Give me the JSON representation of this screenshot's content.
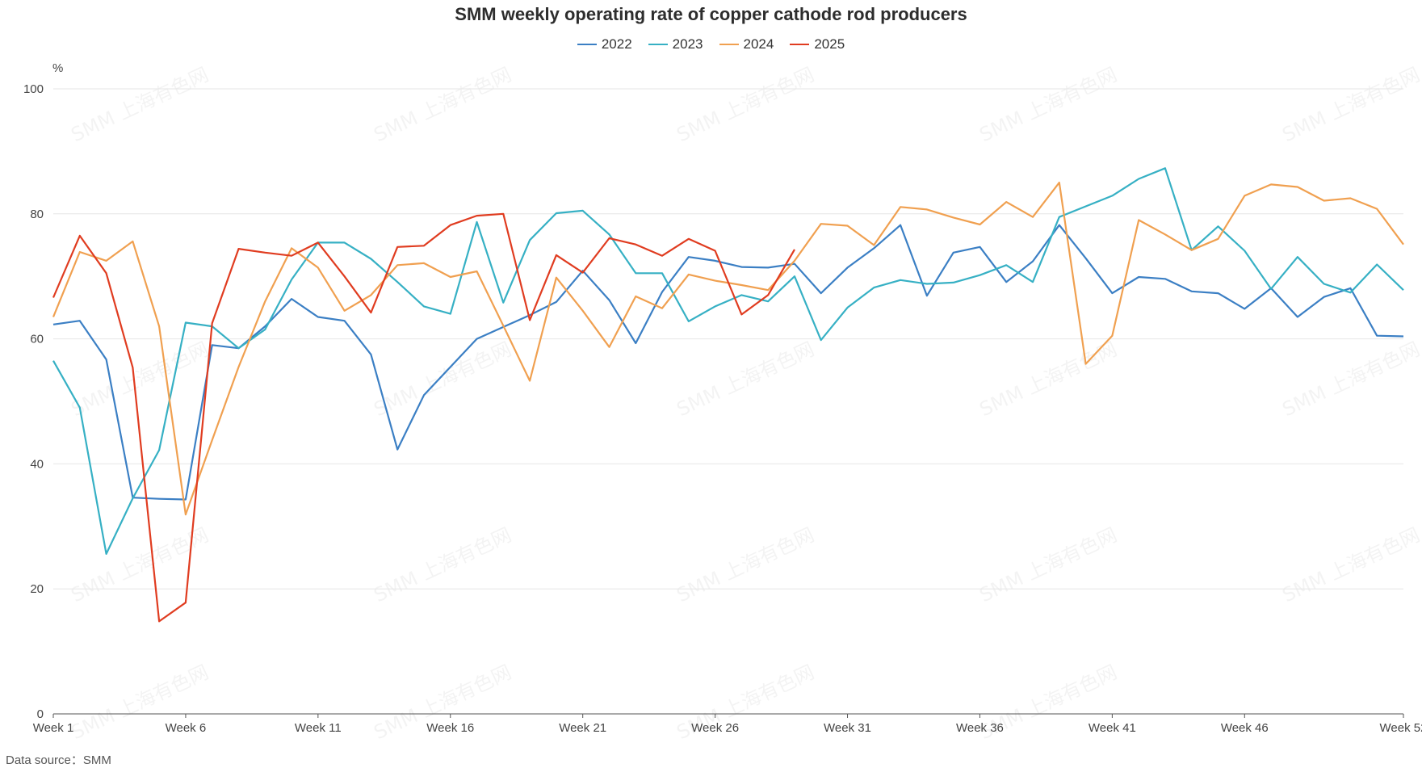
{
  "chart_data": {
    "type": "line",
    "title": "SMM weekly operating rate of copper cathode rod producers",
    "ylabel": "%",
    "xlabel": "",
    "ylim": [
      0,
      100
    ],
    "yticks": [
      0,
      20,
      40,
      60,
      80,
      100
    ],
    "x_tick_labels": [
      {
        "week": 1,
        "label": "Week 1"
      },
      {
        "week": 6,
        "label": "Week 6"
      },
      {
        "week": 11,
        "label": "Week 11"
      },
      {
        "week": 16,
        "label": "Week 16"
      },
      {
        "week": 21,
        "label": "Week 21"
      },
      {
        "week": 26,
        "label": "Week 26"
      },
      {
        "week": 31,
        "label": "Week 31"
      },
      {
        "week": 36,
        "label": "Week 36"
      },
      {
        "week": 41,
        "label": "Week 41"
      },
      {
        "week": 46,
        "label": "Week 46"
      },
      {
        "week": 52,
        "label": "Week 52"
      }
    ],
    "x_range": [
      1,
      52
    ],
    "grid": true,
    "legend_position": "top-center",
    "series": [
      {
        "name": "2022",
        "color": "#3b7fc4",
        "values": [
          62.3,
          62.9,
          56.7,
          34.6,
          34.4,
          34.3,
          59.0,
          58.5,
          62.0,
          66.4,
          63.5,
          62.9,
          57.5,
          42.3,
          51.0,
          55.5,
          60.0,
          61.9,
          63.8,
          65.9,
          70.9,
          66.2,
          59.3,
          67.5,
          73.1,
          72.5,
          71.5,
          71.4,
          72.0,
          67.3,
          71.4,
          74.5,
          78.2,
          66.9,
          73.8,
          74.7,
          69.1,
          72.4,
          78.2,
          72.9,
          67.3,
          69.9,
          69.6,
          67.6,
          67.3,
          64.8,
          68.1,
          63.5,
          66.7,
          68.1,
          60.5,
          60.4
        ]
      },
      {
        "name": "2023",
        "color": "#36b0c4",
        "values": [
          56.5,
          49.0,
          25.6,
          34.5,
          42.2,
          62.6,
          62.0,
          58.5,
          61.5,
          69.5,
          75.4,
          75.4,
          72.8,
          69.1,
          65.2,
          64.0,
          78.7,
          65.8,
          75.8,
          80.1,
          80.5,
          76.7,
          70.5,
          70.5,
          62.8,
          65.2,
          67.0,
          66.0,
          70.0,
          59.8,
          65.0,
          68.2,
          69.4,
          68.8,
          69.0,
          70.2,
          71.8,
          69.1,
          79.5,
          81.2,
          82.9,
          85.6,
          87.3,
          74.2,
          78.0,
          74.1,
          68.0,
          73.1,
          68.8,
          67.4,
          71.9,
          67.8
        ]
      },
      {
        "name": "2024",
        "color": "#f0a050",
        "values": [
          63.5,
          73.9,
          72.5,
          75.6,
          62.0,
          31.9,
          43.8,
          55.5,
          66.0,
          74.5,
          71.4,
          64.5,
          67.0,
          71.8,
          72.1,
          69.9,
          70.8,
          62.1,
          53.3,
          69.8,
          64.5,
          58.7,
          66.8,
          64.9,
          70.3,
          69.3,
          68.6,
          67.8,
          72.5,
          78.4,
          78.1,
          75.0,
          81.1,
          80.7,
          79.4,
          78.3,
          81.9,
          79.5,
          85.0,
          56.0,
          60.5,
          79.0,
          76.7,
          74.2,
          76.0,
          82.9,
          84.7,
          84.3,
          82.1,
          82.5,
          80.8,
          75.1
        ]
      },
      {
        "name": "2025",
        "color": "#e03c20",
        "values": [
          66.6,
          76.5,
          70.5,
          55.4,
          14.8,
          17.8,
          62.5,
          74.4,
          73.8,
          73.3,
          75.4,
          70.0,
          64.2,
          74.7,
          74.9,
          78.2,
          79.7,
          80.0,
          63.0,
          73.4,
          70.6,
          76.1,
          75.1,
          73.3,
          76.0,
          74.1,
          63.9,
          67.0,
          74.3
        ]
      }
    ]
  },
  "footer": {
    "source": "Data source：SMM"
  },
  "watermark": {
    "text": "SMM 上海有色网"
  }
}
